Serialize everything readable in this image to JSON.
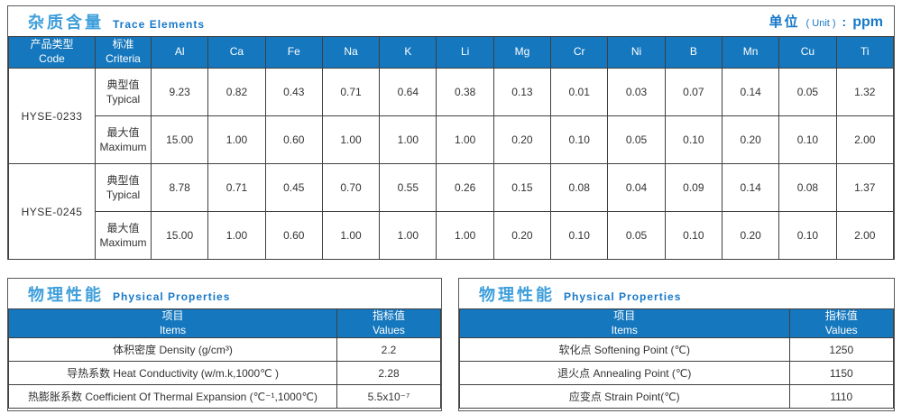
{
  "colors": {
    "header_bg": "#1577be",
    "title_cn": "#3f9fdb",
    "title_en": "#1778c8",
    "grid_border": "#404040",
    "box_border": "#595959",
    "text": "#333333"
  },
  "trace_section": {
    "title_cn": "杂质含量",
    "title_en": "Trace Elements",
    "unit_label_cn": "单位",
    "unit_label_en": "( Unit )",
    "unit_sep": ":",
    "unit_value": "ppm",
    "table": {
      "code_header_cn": "产品类型",
      "code_header_en": "Code",
      "criteria_header_cn": "标准",
      "criteria_header_en": "Criteria",
      "elements": [
        "Al",
        "Ca",
        "Fe",
        "Na",
        "K",
        "Li",
        "Mg",
        "Cr",
        "Ni",
        "B",
        "Mn",
        "Cu",
        "Ti"
      ],
      "products": [
        {
          "code": "HYSE-0233",
          "rows": [
            {
              "label_cn": "典型值",
              "label_en": "Typical",
              "values": [
                "9.23",
                "0.82",
                "0.43",
                "0.71",
                "0.64",
                "0.38",
                "0.13",
                "0.01",
                "0.03",
                "0.07",
                "0.14",
                "0.05",
                "1.32"
              ]
            },
            {
              "label_cn": "最大值",
              "label_en": "Maximum",
              "values": [
                "15.00",
                "1.00",
                "0.60",
                "1.00",
                "1.00",
                "1.00",
                "0.20",
                "0.10",
                "0.05",
                "0.10",
                "0.20",
                "0.10",
                "2.00"
              ]
            }
          ]
        },
        {
          "code": "HYSE-0245",
          "rows": [
            {
              "label_cn": "典型值",
              "label_en": "Typical",
              "values": [
                "8.78",
                "0.71",
                "0.45",
                "0.70",
                "0.55",
                "0.26",
                "0.15",
                "0.08",
                "0.04",
                "0.09",
                "0.14",
                "0.08",
                "1.37"
              ]
            },
            {
              "label_cn": "最大值",
              "label_en": "Maximum",
              "values": [
                "15.00",
                "1.00",
                "0.60",
                "1.00",
                "1.00",
                "1.00",
                "0.20",
                "0.10",
                "0.05",
                "0.10",
                "0.20",
                "0.10",
                "2.00"
              ]
            }
          ]
        }
      ]
    }
  },
  "physical_sections": [
    {
      "title_cn": "物理性能",
      "title_en": "Physical Properties",
      "items_header_cn": "项目",
      "items_header_en": "Items",
      "values_header_cn": "指标值",
      "values_header_en": "Values",
      "rows": [
        {
          "item": "体积密度 Density (g/cm³)",
          "value": "2.2"
        },
        {
          "item": "导热系数 Heat Conductivity (w/m.k,1000℃ )",
          "value": "2.28"
        },
        {
          "item": "热膨胀系数 Coefficient Of Thermal Expansion (℃⁻¹,1000℃)",
          "value": "5.5x10⁻⁷"
        }
      ]
    },
    {
      "title_cn": "物理性能",
      "title_en": "Physical Properties",
      "items_header_cn": "项目",
      "items_header_en": "Items",
      "values_header_cn": "指标值",
      "values_header_en": "Values",
      "rows": [
        {
          "item": "软化点 Softening Point (℃)",
          "value": "1250"
        },
        {
          "item": "退火点 Annealing Point (℃)",
          "value": "1150"
        },
        {
          "item": "应变点 Strain Point(℃)",
          "value": "1110"
        }
      ]
    }
  ]
}
